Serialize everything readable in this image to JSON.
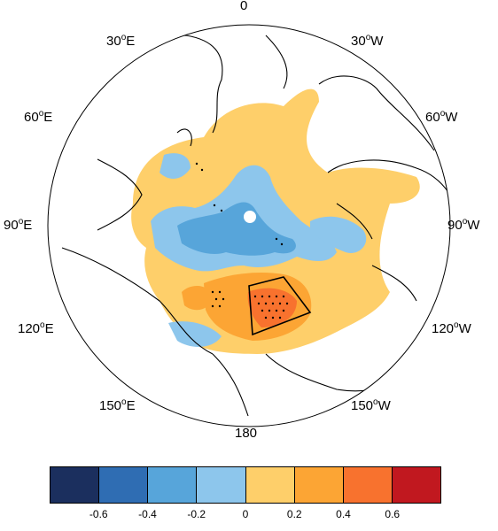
{
  "map": {
    "projection": "north polar stereographic",
    "longitude_labels": {
      "top": {
        "deg": "0",
        "hemi": ""
      },
      "l30e": {
        "deg": "30",
        "hemi": "E"
      },
      "l30w": {
        "deg": "30",
        "hemi": "W"
      },
      "l60e": {
        "deg": "60",
        "hemi": "E"
      },
      "l60w": {
        "deg": "60",
        "hemi": "W"
      },
      "l90e": {
        "deg": "90",
        "hemi": "E"
      },
      "l90w": {
        "deg": "90",
        "hemi": "W"
      },
      "l120e": {
        "deg": "120",
        "hemi": "E"
      },
      "l120w": {
        "deg": "120",
        "hemi": "W"
      },
      "l150e": {
        "deg": "150",
        "hemi": "E"
      },
      "l150w": {
        "deg": "150",
        "hemi": "W"
      },
      "bottom": {
        "deg": "180",
        "hemi": ""
      }
    },
    "degree_symbol": "o",
    "features": [
      "coastlines",
      "stippling",
      "region-box"
    ]
  },
  "colorbar": {
    "colors": [
      "#1b2f5e",
      "#2f6db3",
      "#57a5da",
      "#8dc6ec",
      "#fecf6a",
      "#fca534",
      "#f8722e",
      "#c1181f"
    ],
    "tick_labels": [
      "-0.6",
      "-0.4",
      "-0.2",
      "0",
      "0.2",
      "0.4",
      "0.6"
    ]
  }
}
